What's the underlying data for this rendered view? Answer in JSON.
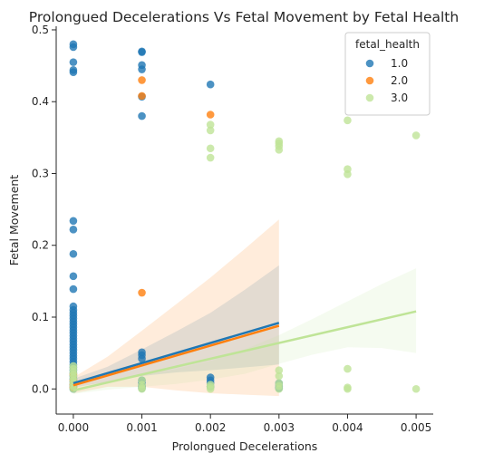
{
  "chart_data": {
    "type": "scatter",
    "title": "Prolongued Decelerations Vs Fetal Movement by Fetal Health",
    "xlabel": "Prolongued Decelerations",
    "ylabel": "Fetal Movement",
    "xlim": [
      -0.00025,
      0.00525
    ],
    "ylim": [
      -0.035,
      0.505
    ],
    "x_ticks": [
      "0.000",
      "0.001",
      "0.002",
      "0.003",
      "0.004",
      "0.005"
    ],
    "y_ticks": [
      "0.0",
      "0.1",
      "0.2",
      "0.3",
      "0.4",
      "0.5"
    ],
    "grid": false,
    "legend": {
      "title": "fetal_health",
      "placement": "top-right",
      "entries": [
        "1.0",
        "2.0",
        "3.0"
      ]
    },
    "series": [
      {
        "name": "1.0",
        "color": "#1f77b4",
        "points": [
          [
            0,
            0.48
          ],
          [
            0,
            0.476
          ],
          [
            0,
            0.455
          ],
          [
            0,
            0.444
          ],
          [
            0,
            0.441
          ],
          [
            0,
            0.234
          ],
          [
            0,
            0.222
          ],
          [
            0,
            0.188
          ],
          [
            0,
            0.157
          ],
          [
            0,
            0.139
          ],
          [
            0,
            0.115
          ],
          [
            0,
            0.11
          ],
          [
            0,
            0.106
          ],
          [
            0,
            0.102
          ],
          [
            0,
            0.098
          ],
          [
            0,
            0.094
          ],
          [
            0,
            0.09
          ],
          [
            0,
            0.086
          ],
          [
            0,
            0.082
          ],
          [
            0,
            0.078
          ],
          [
            0,
            0.074
          ],
          [
            0,
            0.07
          ],
          [
            0,
            0.066
          ],
          [
            0,
            0.062
          ],
          [
            0,
            0.058
          ],
          [
            0,
            0.054
          ],
          [
            0,
            0.05
          ],
          [
            0,
            0.046
          ],
          [
            0,
            0.042
          ],
          [
            0,
            0.038
          ],
          [
            0,
            0.034
          ],
          [
            0,
            0.03
          ],
          [
            0,
            0.026
          ],
          [
            0,
            0.022
          ],
          [
            0,
            0.018
          ],
          [
            0,
            0.014
          ],
          [
            0,
            0.01
          ],
          [
            0,
            0.006
          ],
          [
            0,
            0.003
          ],
          [
            0,
            0.0
          ],
          [
            0.001,
            0.47
          ],
          [
            0.001,
            0.469
          ],
          [
            0.001,
            0.451
          ],
          [
            0.001,
            0.445
          ],
          [
            0.001,
            0.407
          ],
          [
            0.001,
            0.38
          ],
          [
            0.001,
            0.051
          ],
          [
            0.001,
            0.047
          ],
          [
            0.001,
            0.042
          ],
          [
            0.001,
            0.012
          ],
          [
            0.001,
            0.008
          ],
          [
            0.001,
            0.004
          ],
          [
            0.001,
            0.001
          ],
          [
            0.002,
            0.424
          ],
          [
            0.002,
            0.016
          ],
          [
            0.002,
            0.012
          ],
          [
            0.002,
            0.008
          ],
          [
            0.002,
            0.003
          ],
          [
            0.003,
            0.008
          ],
          [
            0.003,
            0.004
          ],
          [
            0.003,
            0.001
          ]
        ],
        "fit": {
          "x0": 0,
          "y0": 0.008,
          "x1": 0.003,
          "y1": 0.092
        },
        "ci": {
          "x": [
            0,
            0.0005,
            0.001,
            0.0015,
            0.002,
            0.0025,
            0.003
          ],
          "upper": [
            0.014,
            0.031,
            0.055,
            0.08,
            0.106,
            0.138,
            0.172
          ],
          "lower": [
            0.002,
            0.01,
            0.018,
            0.023,
            0.026,
            0.03,
            0.034
          ]
        }
      },
      {
        "name": "2.0",
        "color": "#ff7f0e",
        "points": [
          [
            0.001,
            0.43
          ],
          [
            0.001,
            0.408
          ],
          [
            0.001,
            0.134
          ],
          [
            0.002,
            0.382
          ],
          [
            0,
            0.02
          ],
          [
            0,
            0.012
          ],
          [
            0,
            0.006
          ],
          [
            0,
            0.002
          ]
        ],
        "fit": {
          "x0": 0,
          "y0": 0.005,
          "x1": 0.003,
          "y1": 0.088
        },
        "ci": {
          "x": [
            0,
            0.0005,
            0.001,
            0.0015,
            0.002,
            0.0025,
            0.003
          ],
          "upper": [
            0.016,
            0.045,
            0.081,
            0.118,
            0.155,
            0.195,
            0.236
          ],
          "lower": [
            -0.006,
            0.003,
            0.003,
            -0.002,
            -0.006,
            -0.008,
            -0.01
          ]
        }
      },
      {
        "name": "3.0",
        "color": "#bfe497",
        "points": [
          [
            0,
            0.032
          ],
          [
            0,
            0.028
          ],
          [
            0,
            0.024
          ],
          [
            0,
            0.02
          ],
          [
            0,
            0.016
          ],
          [
            0,
            0.012
          ],
          [
            0,
            0.008
          ],
          [
            0,
            0.004
          ],
          [
            0,
            0.0
          ],
          [
            0.001,
            0.012
          ],
          [
            0.001,
            0.006
          ],
          [
            0.001,
            0.002
          ],
          [
            0.001,
            0.0
          ],
          [
            0.002,
            0.368
          ],
          [
            0.002,
            0.36
          ],
          [
            0.002,
            0.335
          ],
          [
            0.002,
            0.322
          ],
          [
            0.002,
            0.006
          ],
          [
            0.002,
            0.003
          ],
          [
            0.002,
            0.0
          ],
          [
            0.003,
            0.345
          ],
          [
            0.003,
            0.342
          ],
          [
            0.003,
            0.338
          ],
          [
            0.003,
            0.333
          ],
          [
            0.003,
            0.026
          ],
          [
            0.003,
            0.018
          ],
          [
            0.003,
            0.008
          ],
          [
            0.003,
            0.004
          ],
          [
            0.003,
            0.0
          ],
          [
            0.004,
            0.374
          ],
          [
            0.004,
            0.306
          ],
          [
            0.004,
            0.299
          ],
          [
            0.004,
            0.028
          ],
          [
            0.004,
            0.002
          ],
          [
            0.004,
            0.0
          ],
          [
            0.005,
            0.353
          ],
          [
            0.005,
            0.0
          ]
        ],
        "fit": {
          "x0": 0,
          "y0": -0.002,
          "x1": 0.005,
          "y1": 0.108
        },
        "ci": {
          "x": [
            0,
            0.0005,
            0.001,
            0.0015,
            0.002,
            0.0025,
            0.003,
            0.0035,
            0.004,
            0.0045,
            0.005
          ],
          "upper": [
            0.003,
            0.011,
            0.019,
            0.028,
            0.039,
            0.055,
            0.075,
            0.098,
            0.122,
            0.146,
            0.168
          ],
          "lower": [
            -0.007,
            -0.001,
            0.003,
            0.007,
            0.013,
            0.021,
            0.035,
            0.048,
            0.058,
            0.057,
            0.05
          ]
        }
      }
    ]
  }
}
